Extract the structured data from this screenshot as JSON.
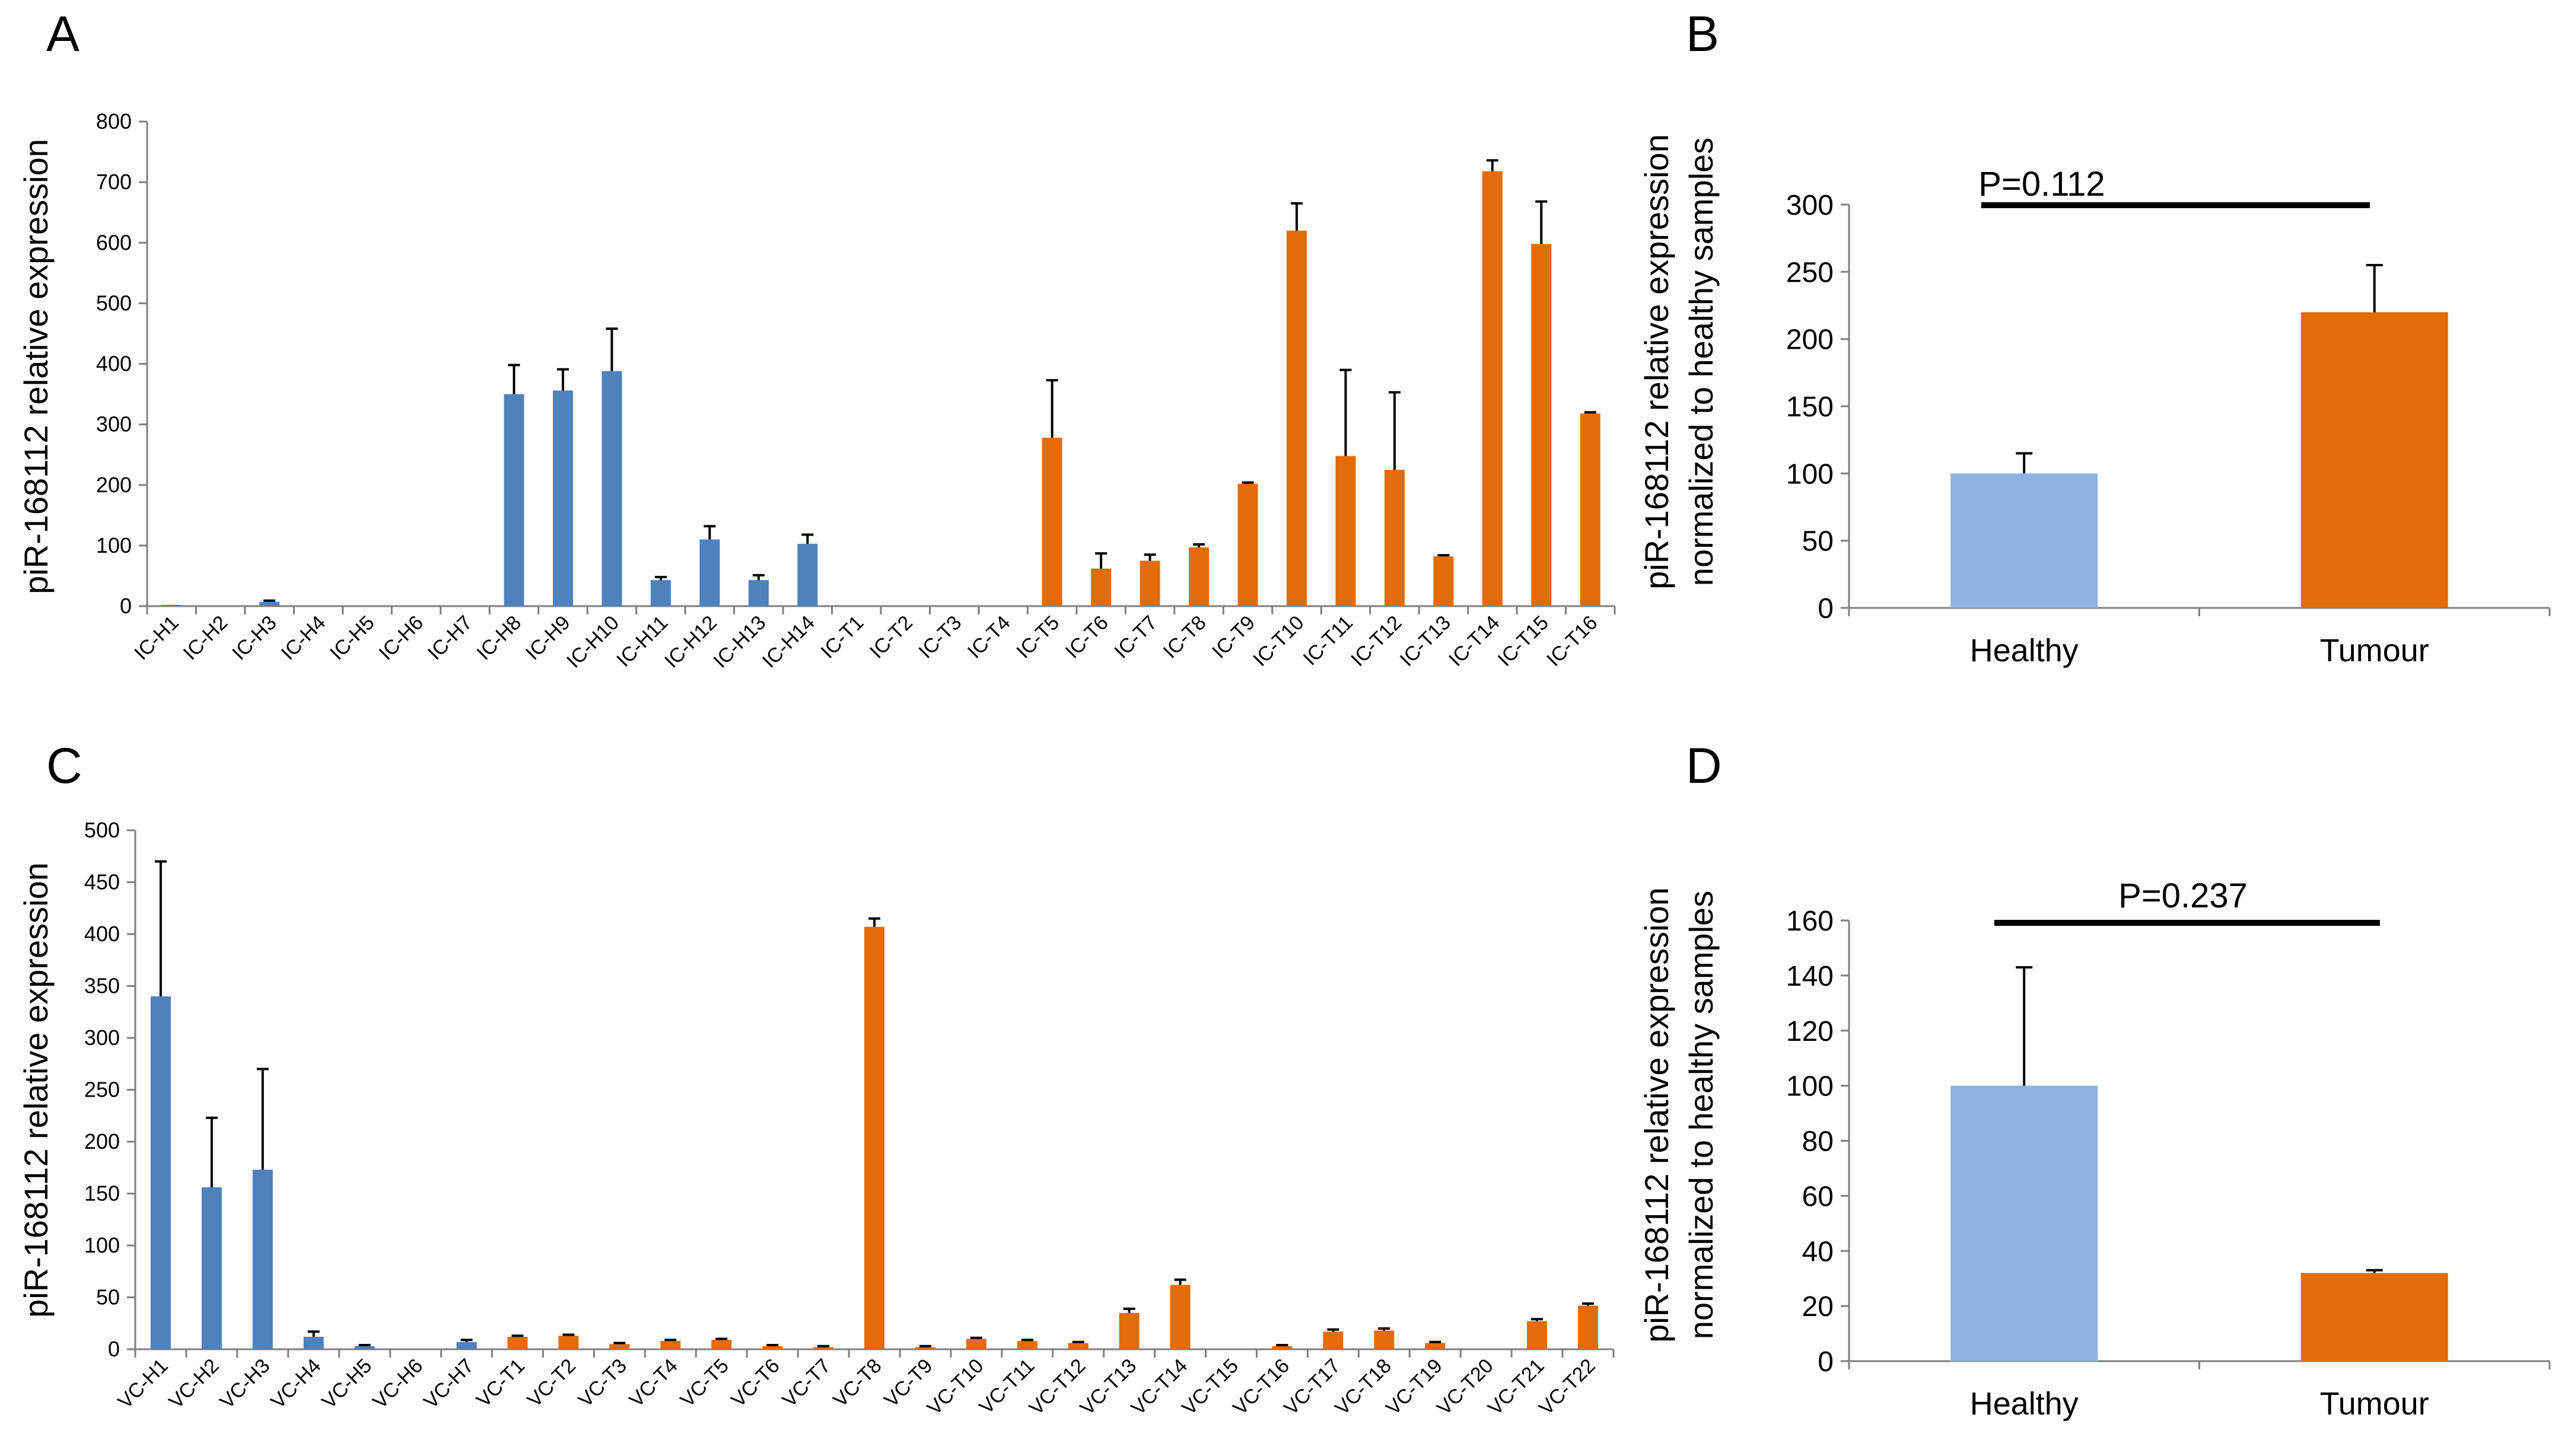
{
  "chart_data": [
    {
      "panel": "A",
      "type": "bar",
      "ylabel": "piR-168112 relative expression",
      "ylim": [
        0,
        800
      ],
      "yticks": [
        0,
        100,
        200,
        300,
        400,
        500,
        600,
        700,
        800
      ],
      "categories": [
        "IC-H1",
        "IC-H2",
        "IC-H3",
        "IC-H4",
        "IC-H5",
        "IC-H6",
        "IC-H7",
        "IC-H8",
        "IC-H9",
        "IC-H10",
        "IC-H11",
        "IC-H12",
        "IC-H13",
        "IC-H14",
        "IC-T1",
        "IC-T2",
        "IC-T3",
        "IC-T4",
        "IC-T5",
        "IC-T6",
        "IC-T7",
        "IC-T8",
        "IC-T9",
        "IC-T10",
        "IC-T11",
        "IC-T12",
        "IC-T13",
        "IC-T14",
        "IC-T15",
        "IC-T16"
      ],
      "values": [
        2,
        0,
        7,
        0,
        0,
        0,
        0,
        350,
        356,
        388,
        43,
        110,
        43,
        103,
        0,
        0,
        0,
        0,
        278,
        62,
        75,
        97,
        202,
        620,
        248,
        225,
        82,
        718,
        598,
        318
      ],
      "errors": [
        0,
        0,
        2,
        0,
        0,
        0,
        0,
        48,
        35,
        70,
        5,
        22,
        8,
        15,
        0,
        0,
        0,
        0,
        95,
        25,
        10,
        5,
        2,
        45,
        142,
        128,
        2,
        18,
        70,
        2
      ],
      "groups": [
        "healthy",
        "healthy",
        "healthy",
        "healthy",
        "healthy",
        "healthy",
        "healthy",
        "healthy",
        "healthy",
        "healthy",
        "healthy",
        "healthy",
        "healthy",
        "healthy",
        "tumour",
        "tumour",
        "tumour",
        "tumour",
        "tumour",
        "tumour",
        "tumour",
        "tumour",
        "tumour",
        "tumour",
        "tumour",
        "tumour",
        "tumour",
        "tumour",
        "tumour",
        "tumour"
      ]
    },
    {
      "panel": "B",
      "type": "bar",
      "ylabel": [
        "piR-168112 relative expression",
        "normalized to healthy samples"
      ],
      "ylim": [
        0,
        300
      ],
      "yticks": [
        0,
        50,
        100,
        150,
        200,
        250,
        300
      ],
      "categories": [
        "Healthy",
        "Tumour"
      ],
      "values": [
        100,
        220
      ],
      "errors": [
        15,
        35
      ],
      "groups": [
        "healthy",
        "tumour"
      ],
      "annotation": "P=0.112"
    },
    {
      "panel": "C",
      "type": "bar",
      "ylabel": "piR-168112 relative expression",
      "ylim": [
        0,
        500
      ],
      "yticks": [
        0,
        50,
        100,
        150,
        200,
        250,
        300,
        350,
        400,
        450,
        500
      ],
      "categories": [
        "VC-H1",
        "VC-H2",
        "VC-H3",
        "VC-H4",
        "VC-H5",
        "VC-H6",
        "VC-H7",
        "VC-T1",
        "VC-T2",
        "VC-T3",
        "VC-T4",
        "VC-T5",
        "VC-T6",
        "VC-T7",
        "VC-T8",
        "VC-T9",
        "VC-T10",
        "VC-T11",
        "VC-T12",
        "VC-T13",
        "VC-T14",
        "VC-T15",
        "VC-T16",
        "VC-T17",
        "VC-T18",
        "VC-T19",
        "VC-T20",
        "VC-T21",
        "VC-T22"
      ],
      "values": [
        340,
        156,
        173,
        12,
        3,
        0,
        7,
        12,
        13,
        5,
        8,
        9,
        3,
        2,
        407,
        2,
        10,
        8,
        6,
        35,
        62,
        0,
        3,
        17,
        18,
        6,
        0,
        27,
        42
      ],
      "errors": [
        130,
        67,
        97,
        5,
        1,
        0,
        2,
        1,
        1,
        1,
        1,
        1,
        1,
        1,
        8,
        1,
        1,
        1,
        1,
        4,
        5,
        0,
        1,
        2,
        2,
        1,
        0,
        2,
        2
      ],
      "groups": [
        "healthy",
        "healthy",
        "healthy",
        "healthy",
        "healthy",
        "healthy",
        "healthy",
        "tumour",
        "tumour",
        "tumour",
        "tumour",
        "tumour",
        "tumour",
        "tumour",
        "tumour",
        "tumour",
        "tumour",
        "tumour",
        "tumour",
        "tumour",
        "tumour",
        "tumour",
        "tumour",
        "tumour",
        "tumour",
        "tumour",
        "tumour",
        "tumour",
        "tumour"
      ]
    },
    {
      "panel": "D",
      "type": "bar",
      "ylabel": [
        "piR-168112 relative expression",
        "normalized to healthy samples"
      ],
      "ylim": [
        0,
        160
      ],
      "yticks": [
        0,
        20,
        40,
        60,
        80,
        100,
        120,
        140,
        160
      ],
      "categories": [
        "Healthy",
        "Tumour"
      ],
      "values": [
        100,
        32
      ],
      "errors": [
        43,
        1
      ],
      "groups": [
        "healthy",
        "tumour"
      ],
      "annotation": "P=0.237"
    }
  ],
  "colors": {
    "healthy_dark": "#4f81bd",
    "tumour": "#e36c0a",
    "healthy_light": "#8db3e2"
  }
}
